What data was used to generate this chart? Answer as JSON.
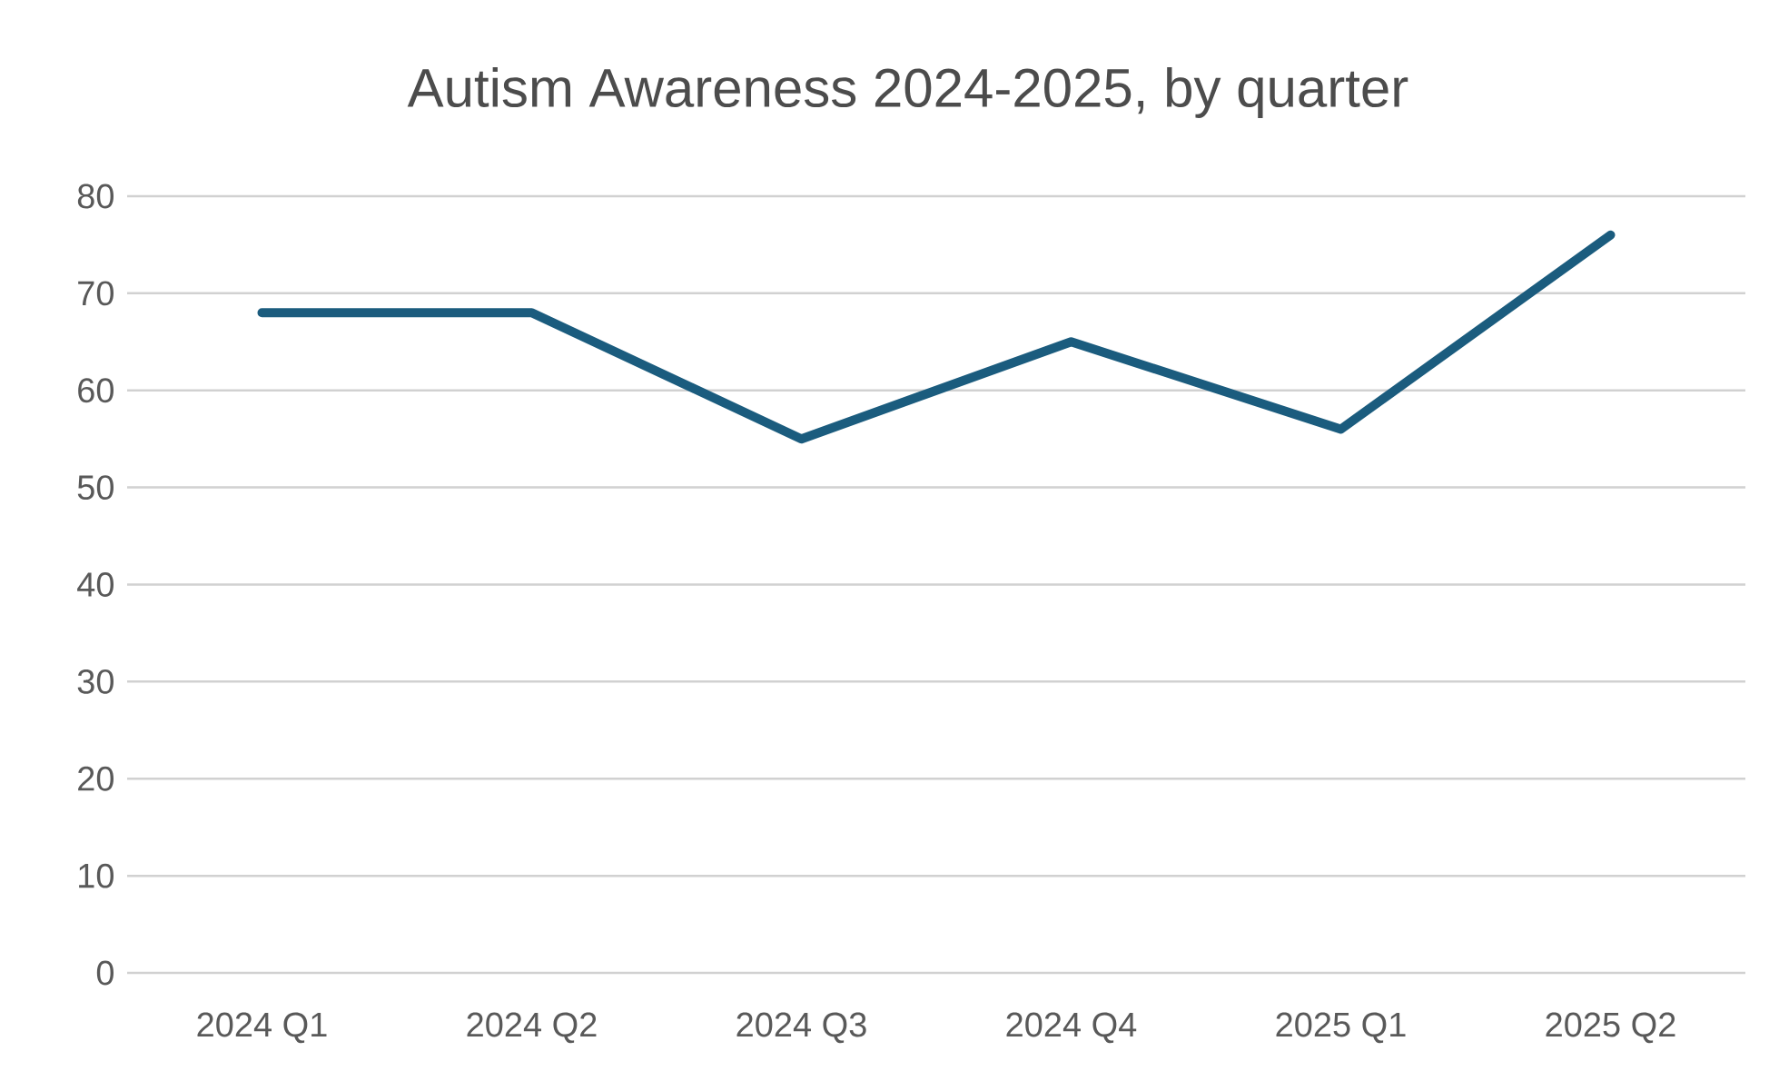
{
  "chart_data": {
    "type": "line",
    "title": "Autism Awareness 2024-2025, by quarter",
    "categories": [
      "2024 Q1",
      "2024 Q2",
      "2024 Q3",
      "2024 Q4",
      "2025 Q1",
      "2025 Q2"
    ],
    "values": [
      68,
      68,
      55,
      65,
      56,
      76
    ],
    "color": "#1b5c7e",
    "ylim": [
      0,
      80
    ],
    "yticks": [
      0,
      10,
      20,
      30,
      40,
      50,
      60,
      70,
      80
    ],
    "grid": "y",
    "marker": "none",
    "line_style": "solid"
  }
}
